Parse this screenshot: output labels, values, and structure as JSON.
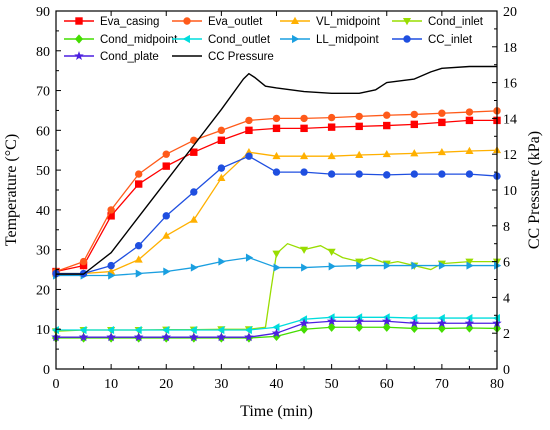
{
  "chart_data": {
    "type": "line",
    "xlabel": "Time (min)",
    "ylabel": "Temperature (°C)",
    "y2label": "CC Pressure (kPa)",
    "xlim": [
      0,
      80
    ],
    "ylim": [
      0,
      90
    ],
    "y2lim": [
      0,
      20
    ],
    "xticks": [
      0,
      10,
      20,
      30,
      40,
      50,
      60,
      70,
      80
    ],
    "yticks": [
      0,
      10,
      20,
      30,
      40,
      50,
      60,
      70,
      80,
      90
    ],
    "y2ticks": [
      0,
      2,
      4,
      6,
      8,
      10,
      12,
      14,
      16,
      18,
      20
    ],
    "grid": false,
    "legend_position": "top",
    "series": [
      {
        "name": "Eva_casing",
        "color": "#ff0000",
        "marker": "square",
        "axis": "left",
        "x": [
          0,
          5,
          10,
          15,
          20,
          25,
          30,
          35,
          40,
          45,
          50,
          55,
          60,
          65,
          70,
          75,
          80
        ],
        "y": [
          24.5,
          26,
          38.5,
          46.5,
          51,
          54.5,
          57.5,
          60,
          60.5,
          60.5,
          60.8,
          61,
          61.2,
          61.5,
          62,
          62.5,
          62.5
        ]
      },
      {
        "name": "Eva_outlet",
        "color": "#ff5a1a",
        "marker": "circle",
        "axis": "left",
        "x": [
          0,
          5,
          10,
          15,
          20,
          25,
          30,
          35,
          40,
          45,
          50,
          55,
          60,
          65,
          70,
          75,
          80
        ],
        "y": [
          24.5,
          27,
          40,
          49,
          54,
          57.5,
          60,
          62.5,
          63,
          63,
          63.2,
          63.5,
          63.8,
          64,
          64.3,
          64.6,
          64.9
        ]
      },
      {
        "name": "VL_midpoint",
        "color": "#ffb000",
        "marker": "triangle-up",
        "axis": "left",
        "x": [
          0,
          5,
          10,
          15,
          20,
          25,
          30,
          35,
          40,
          45,
          50,
          55,
          60,
          65,
          70,
          75,
          80
        ],
        "y": [
          24,
          24,
          24.5,
          27.5,
          33.5,
          37.5,
          48,
          54.5,
          53.5,
          53.5,
          53.5,
          53.8,
          54,
          54.2,
          54.5,
          54.8,
          55
        ]
      },
      {
        "name": "Cond_inlet",
        "color": "#99dd00",
        "marker": "triangle-down",
        "axis": "left",
        "x": [
          0,
          5,
          10,
          15,
          20,
          25,
          30,
          35,
          38,
          39,
          40,
          42,
          45,
          48,
          50,
          52,
          55,
          57,
          60,
          62,
          65,
          68,
          70,
          75,
          80
        ],
        "y": [
          9.5,
          9.8,
          9.8,
          9.8,
          9.9,
          9.9,
          10,
          10,
          10.5,
          20,
          29,
          31.5,
          30,
          31,
          29.5,
          28,
          27,
          28,
          26.5,
          27,
          26,
          25,
          26.5,
          27,
          27
        ]
      },
      {
        "name": "Cond_midpoint",
        "color": "#44dd00",
        "marker": "diamond",
        "axis": "left",
        "x": [
          0,
          5,
          10,
          15,
          20,
          25,
          30,
          35,
          40,
          45,
          50,
          55,
          60,
          65,
          70,
          75,
          80
        ],
        "y": [
          7.8,
          7.8,
          7.8,
          7.8,
          7.8,
          7.8,
          7.8,
          7.8,
          8.2,
          10,
          10.5,
          10.5,
          10.5,
          10.2,
          10.2,
          10.3,
          10.2
        ]
      },
      {
        "name": "Cond_outlet",
        "color": "#00dddd",
        "marker": "triangle-left",
        "axis": "left",
        "x": [
          0,
          5,
          10,
          15,
          20,
          25,
          30,
          35,
          40,
          45,
          50,
          55,
          60,
          65,
          70,
          75,
          80
        ],
        "y": [
          9.8,
          9.8,
          9.8,
          9.8,
          9.8,
          9.8,
          9.8,
          9.8,
          10.5,
          12.5,
          13,
          13,
          13,
          12.8,
          12.8,
          12.8,
          12.8
        ]
      },
      {
        "name": "LL_midpoint",
        "color": "#1a9fe0",
        "marker": "triangle-right",
        "axis": "left",
        "x": [
          0,
          5,
          10,
          15,
          20,
          25,
          30,
          35,
          40,
          45,
          50,
          55,
          60,
          65,
          70,
          75,
          80
        ],
        "y": [
          23.5,
          23.5,
          23.5,
          24,
          24.5,
          25.5,
          27,
          28,
          25.5,
          25.5,
          25.8,
          26,
          26,
          26,
          26,
          26,
          26
        ]
      },
      {
        "name": "CC_inlet",
        "color": "#1f4fe0",
        "marker": "circle",
        "axis": "left",
        "x": [
          0,
          5,
          10,
          15,
          20,
          25,
          30,
          35,
          40,
          45,
          50,
          55,
          60,
          65,
          70,
          75,
          80
        ],
        "y": [
          24,
          24,
          26,
          31,
          38.5,
          44.5,
          50.5,
          53.5,
          49.5,
          49.5,
          49,
          49,
          48.8,
          49,
          49,
          49,
          48.5
        ]
      },
      {
        "name": "Cond_plate",
        "color": "#4c1fe0",
        "marker": "star",
        "axis": "left",
        "x": [
          0,
          5,
          10,
          15,
          20,
          25,
          30,
          35,
          40,
          45,
          50,
          55,
          60,
          65,
          70,
          75,
          80
        ],
        "y": [
          8,
          8,
          8,
          8,
          8,
          8,
          8,
          8,
          9,
          11.5,
          12,
          12,
          12,
          11.5,
          11.5,
          11.5,
          11.5
        ]
      },
      {
        "name": "CC Pressure",
        "color": "#000000",
        "marker": "none",
        "axis": "right",
        "x": [
          0,
          5,
          10,
          15,
          20,
          25,
          30,
          34,
          35,
          36,
          38,
          40,
          45,
          50,
          55,
          58,
          60,
          65,
          68,
          70,
          75,
          80
        ],
        "y": [
          5.3,
          5.3,
          6.5,
          8.5,
          10.5,
          12.5,
          14.5,
          16.2,
          16.5,
          16.3,
          15.8,
          15.7,
          15.5,
          15.4,
          15.4,
          15.6,
          16.0,
          16.2,
          16.6,
          16.8,
          16.9,
          16.9
        ]
      }
    ]
  }
}
